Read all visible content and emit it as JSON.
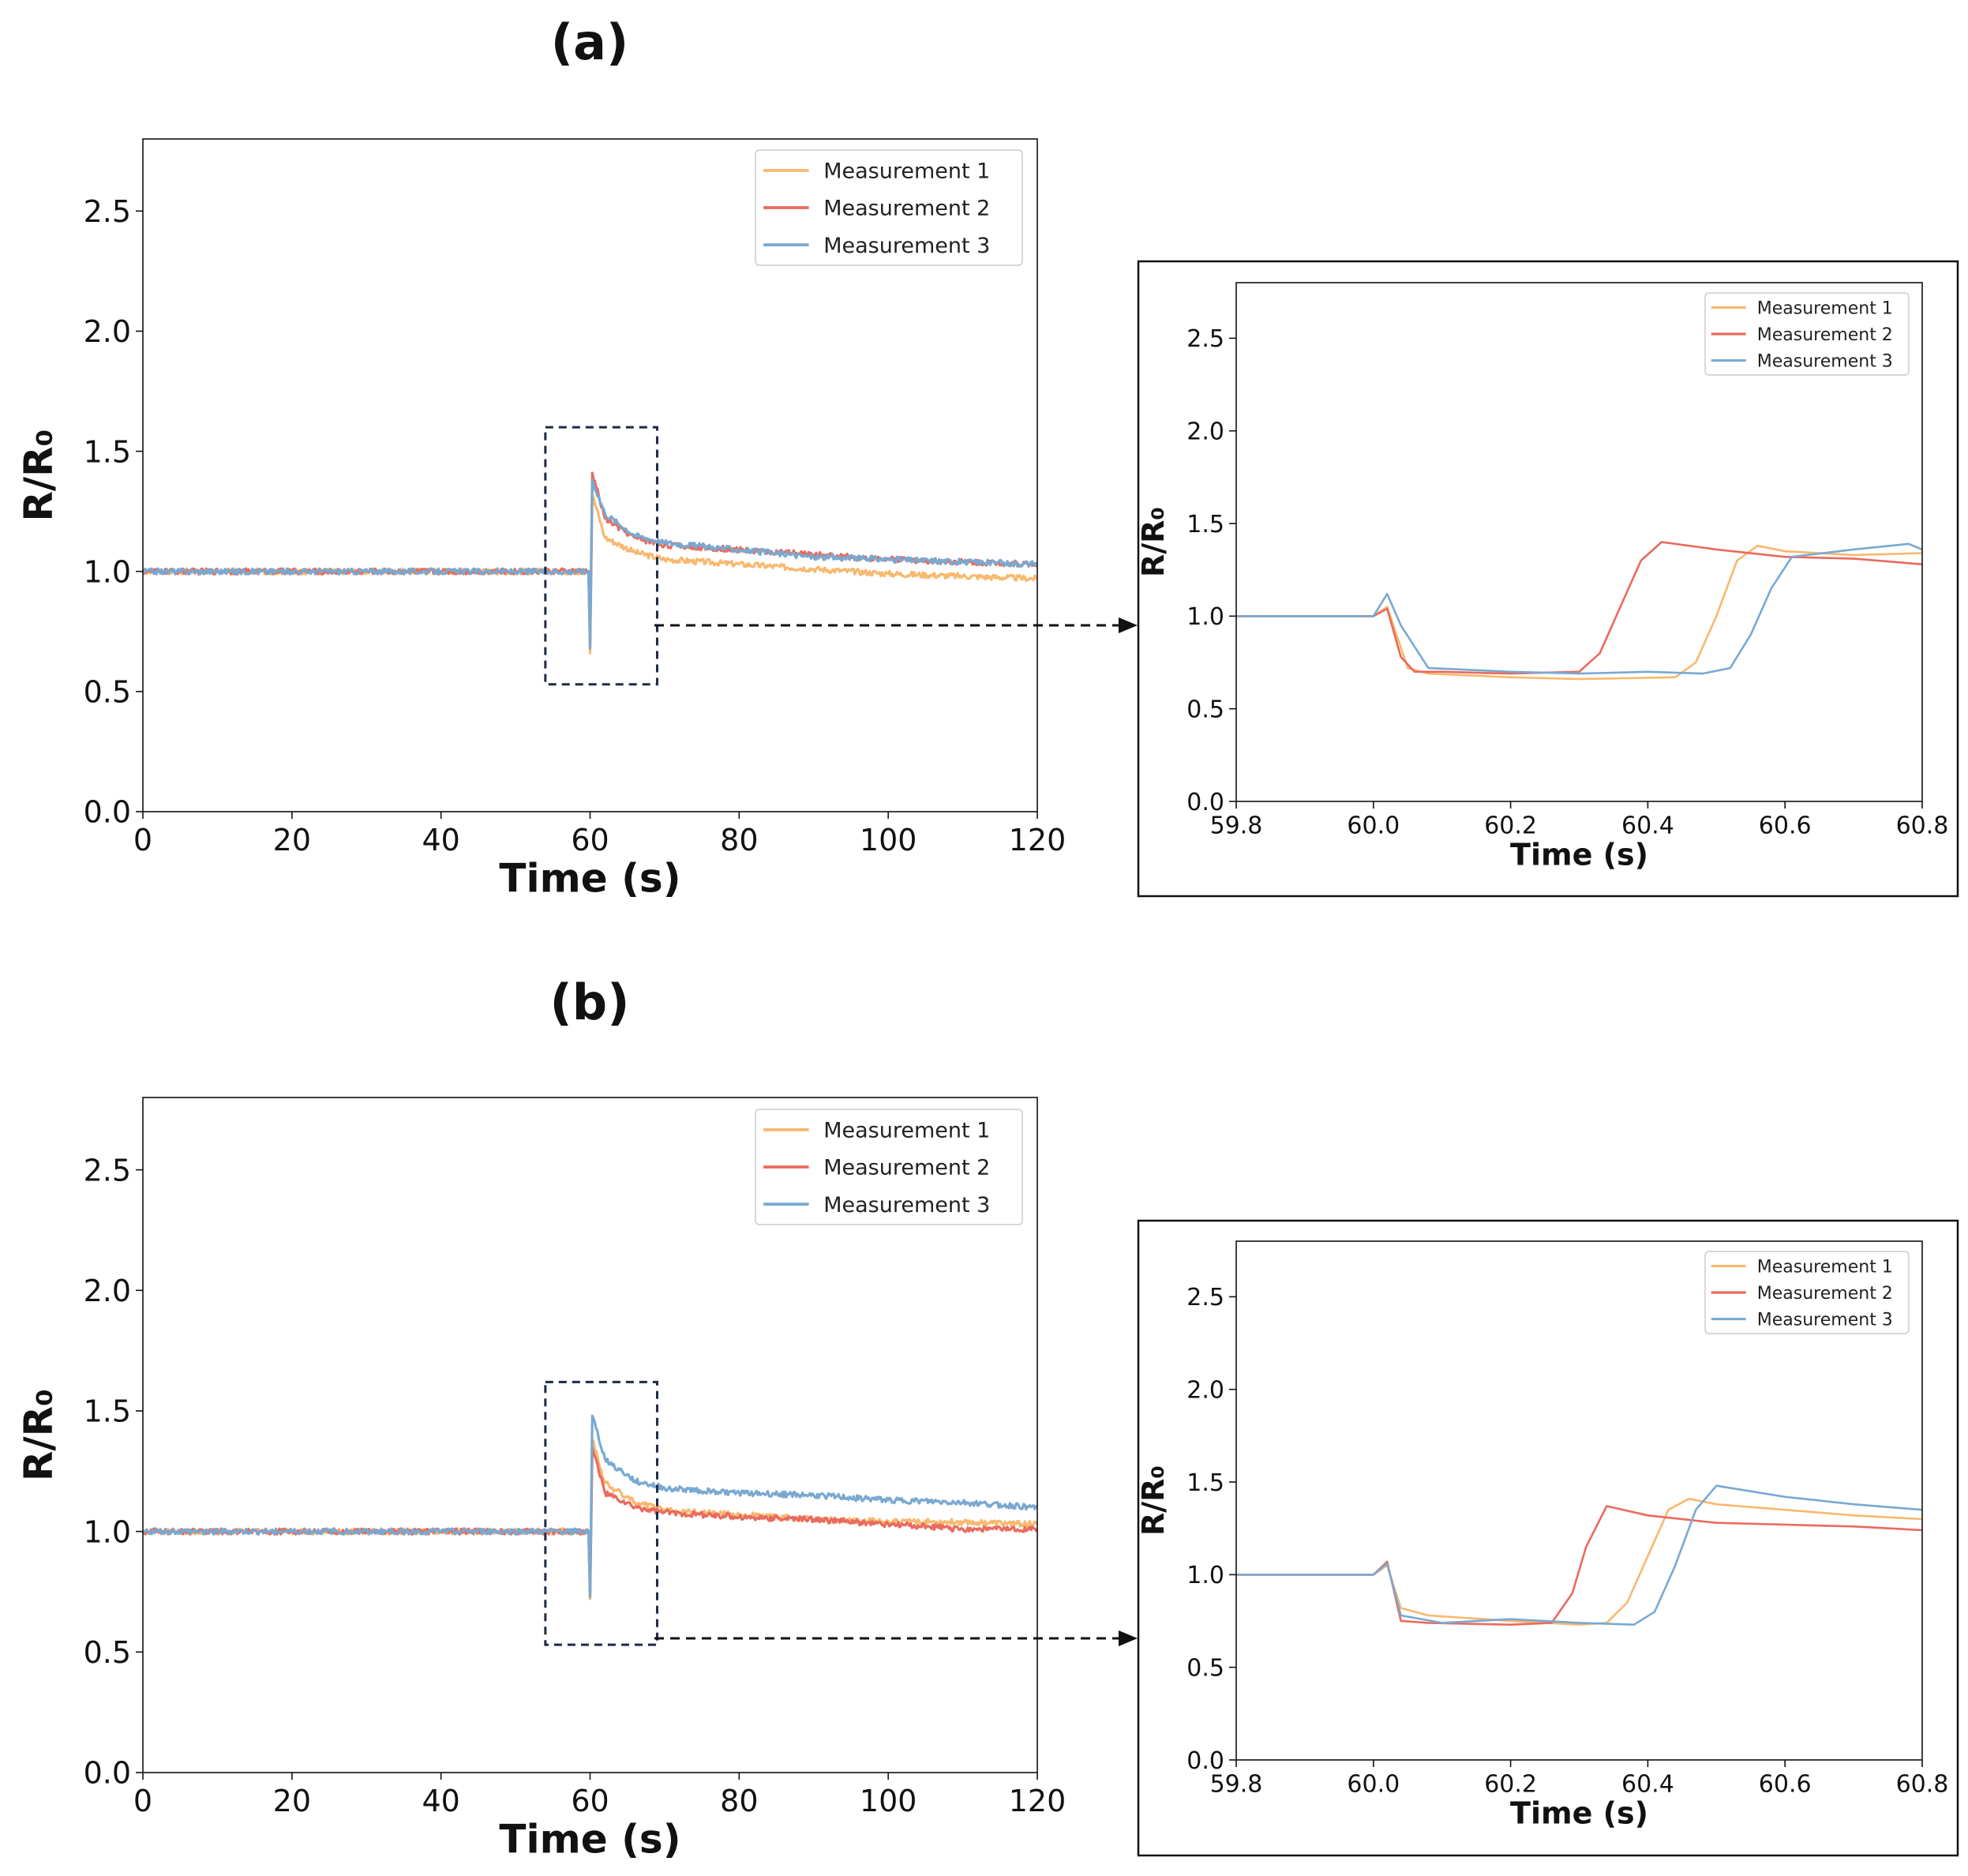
{
  "panels": [
    {
      "label": "(a)"
    },
    {
      "label": "(b)"
    }
  ],
  "colors": {
    "Measurement 1": "#f8b86e",
    "Measurement 2": "#ea6a5d",
    "Measurement 3": "#79a9d1",
    "axis": "#111111",
    "annotation": "#1f2a44"
  },
  "chart_data": [
    {
      "id": "a-main",
      "panel": "(a)",
      "type": "line",
      "xlabel": "Time (s)",
      "ylabel": "R/R₀",
      "xlim": [
        0,
        120
      ],
      "ylim": [
        0,
        2.8
      ],
      "xticks": [
        0,
        20,
        40,
        60,
        80,
        100,
        120
      ],
      "xtick_labels": [
        "0",
        "20",
        "40",
        "60",
        "80",
        "100",
        "120"
      ],
      "yticks": [
        0.0,
        0.5,
        1.0,
        1.5,
        2.0,
        2.5
      ],
      "ytick_labels": [
        "0.0",
        "0.5",
        "1.0",
        "1.5",
        "2.0",
        "2.5"
      ],
      "legend": "top-right",
      "zoom_box": {
        "x": [
          54,
          69
        ],
        "y": [
          0.53,
          1.6
        ]
      },
      "series": [
        {
          "name": "Measurement 1",
          "x": [
            0,
            20,
            40,
            59.8,
            60,
            60.3,
            62,
            66,
            70,
            80,
            90,
            100,
            110,
            120
          ],
          "y": [
            1.0,
            1.0,
            1.0,
            1.0,
            0.66,
            1.32,
            1.14,
            1.08,
            1.05,
            1.03,
            1.01,
            0.99,
            0.98,
            0.97
          ]
        },
        {
          "name": "Measurement 2",
          "x": [
            0,
            20,
            40,
            59.8,
            60,
            60.3,
            62,
            66,
            70,
            80,
            90,
            100,
            110,
            120
          ],
          "y": [
            1.0,
            1.0,
            1.0,
            1.0,
            0.69,
            1.41,
            1.22,
            1.14,
            1.11,
            1.09,
            1.07,
            1.05,
            1.04,
            1.03
          ]
        },
        {
          "name": "Measurement 3",
          "x": [
            0,
            20,
            40,
            59.8,
            60,
            60.3,
            62,
            66,
            70,
            80,
            90,
            100,
            110,
            120
          ],
          "y": [
            1.0,
            1.0,
            1.0,
            1.0,
            0.68,
            1.38,
            1.24,
            1.15,
            1.12,
            1.09,
            1.06,
            1.05,
            1.04,
            1.03
          ]
        }
      ]
    },
    {
      "id": "a-zoom",
      "panel": "(a)",
      "type": "line",
      "xlabel": "Time (s)",
      "ylabel": "R/R₀",
      "xlim": [
        59.8,
        60.8
      ],
      "ylim": [
        0,
        2.8
      ],
      "xticks": [
        59.8,
        60.0,
        60.2,
        60.4,
        60.6,
        60.8
      ],
      "xtick_labels": [
        "59.8",
        "60.0",
        "60.2",
        "60.4",
        "60.6",
        "60.8"
      ],
      "yticks": [
        0.0,
        0.5,
        1.0,
        1.5,
        2.0,
        2.5
      ],
      "ytick_labels": [
        "0.0",
        "0.5",
        "1.0",
        "1.5",
        "2.0",
        "2.5"
      ],
      "legend": "top-right",
      "series": [
        {
          "name": "Measurement 1",
          "x": [
            59.8,
            60.0,
            60.02,
            60.05,
            60.08,
            60.2,
            60.3,
            60.44,
            60.47,
            60.5,
            60.53,
            60.56,
            60.6,
            60.7,
            60.8
          ],
          "y": [
            1.0,
            1.0,
            1.05,
            0.72,
            0.69,
            0.67,
            0.66,
            0.67,
            0.75,
            1.0,
            1.3,
            1.38,
            1.35,
            1.33,
            1.34
          ]
        },
        {
          "name": "Measurement 2",
          "x": [
            59.8,
            60.0,
            60.02,
            60.04,
            60.06,
            60.1,
            60.2,
            60.3,
            60.33,
            60.36,
            60.39,
            60.42,
            60.5,
            60.6,
            60.7,
            60.8
          ],
          "y": [
            1.0,
            1.0,
            1.04,
            0.78,
            0.7,
            0.7,
            0.69,
            0.7,
            0.8,
            1.05,
            1.3,
            1.4,
            1.36,
            1.32,
            1.31,
            1.28
          ]
        },
        {
          "name": "Measurement 3",
          "x": [
            59.8,
            60.0,
            60.02,
            60.04,
            60.08,
            60.2,
            60.3,
            60.4,
            60.48,
            60.52,
            60.55,
            60.58,
            60.61,
            60.7,
            60.78,
            60.8
          ],
          "y": [
            1.0,
            1.0,
            1.12,
            0.95,
            0.72,
            0.7,
            0.69,
            0.7,
            0.69,
            0.72,
            0.9,
            1.15,
            1.32,
            1.36,
            1.39,
            1.36
          ]
        }
      ]
    },
    {
      "id": "b-main",
      "panel": "(b)",
      "type": "line",
      "xlabel": "Time (s)",
      "ylabel": "R/R₀",
      "xlim": [
        0,
        120
      ],
      "ylim": [
        0,
        2.8
      ],
      "xticks": [
        0,
        20,
        40,
        60,
        80,
        100,
        120
      ],
      "xtick_labels": [
        "0",
        "20",
        "40",
        "60",
        "80",
        "100",
        "120"
      ],
      "yticks": [
        0.0,
        0.5,
        1.0,
        1.5,
        2.0,
        2.5
      ],
      "ytick_labels": [
        "0.0",
        "0.5",
        "1.0",
        "1.5",
        "2.0",
        "2.5"
      ],
      "legend": "top-right",
      "zoom_box": {
        "x": [
          54,
          69
        ],
        "y": [
          0.53,
          1.62
        ]
      },
      "series": [
        {
          "name": "Measurement 1",
          "x": [
            0,
            20,
            40,
            59.8,
            60,
            60.3,
            62,
            66,
            70,
            80,
            90,
            100,
            110,
            120
          ],
          "y": [
            1.0,
            1.0,
            1.0,
            1.0,
            0.72,
            1.38,
            1.2,
            1.12,
            1.09,
            1.07,
            1.05,
            1.04,
            1.04,
            1.03
          ]
        },
        {
          "name": "Measurement 2",
          "x": [
            0,
            20,
            40,
            59.8,
            60,
            60.3,
            62,
            66,
            70,
            80,
            90,
            100,
            110,
            120
          ],
          "y": [
            1.0,
            1.0,
            1.0,
            1.0,
            0.73,
            1.35,
            1.16,
            1.1,
            1.08,
            1.06,
            1.05,
            1.03,
            1.01,
            1.01
          ]
        },
        {
          "name": "Measurement 3",
          "x": [
            0,
            20,
            40,
            59.8,
            60,
            60.3,
            62,
            66,
            70,
            80,
            90,
            100,
            110,
            120
          ],
          "y": [
            1.0,
            1.0,
            1.0,
            1.0,
            0.73,
            1.48,
            1.3,
            1.21,
            1.18,
            1.16,
            1.15,
            1.13,
            1.12,
            1.1
          ]
        }
      ]
    },
    {
      "id": "b-zoom",
      "panel": "(b)",
      "type": "line",
      "xlabel": "Time (s)",
      "ylabel": "R/R₀",
      "xlim": [
        59.8,
        60.8
      ],
      "ylim": [
        0,
        2.8
      ],
      "xticks": [
        59.8,
        60.0,
        60.2,
        60.4,
        60.6,
        60.8
      ],
      "xtick_labels": [
        "59.8",
        "60.0",
        "60.2",
        "60.4",
        "60.6",
        "60.8"
      ],
      "yticks": [
        0.0,
        0.5,
        1.0,
        1.5,
        2.0,
        2.5
      ],
      "ytick_labels": [
        "0.0",
        "0.5",
        "1.0",
        "1.5",
        "2.0",
        "2.5"
      ],
      "legend": "top-right",
      "series": [
        {
          "name": "Measurement 1",
          "x": [
            59.8,
            60.0,
            60.02,
            60.04,
            60.08,
            60.2,
            60.3,
            60.34,
            60.37,
            60.4,
            60.43,
            60.46,
            60.5,
            60.6,
            60.7,
            60.8
          ],
          "y": [
            1.0,
            1.0,
            1.05,
            0.82,
            0.78,
            0.75,
            0.73,
            0.74,
            0.85,
            1.1,
            1.35,
            1.41,
            1.38,
            1.35,
            1.32,
            1.3
          ]
        },
        {
          "name": "Measurement 2",
          "x": [
            59.8,
            60.0,
            60.02,
            60.04,
            60.08,
            60.2,
            60.26,
            60.29,
            60.31,
            60.34,
            60.4,
            60.5,
            60.6,
            60.7,
            60.8
          ],
          "y": [
            1.0,
            1.0,
            1.07,
            0.75,
            0.74,
            0.73,
            0.74,
            0.9,
            1.15,
            1.37,
            1.32,
            1.28,
            1.27,
            1.26,
            1.24
          ]
        },
        {
          "name": "Measurement 3",
          "x": [
            59.8,
            60.0,
            60.02,
            60.04,
            60.1,
            60.2,
            60.3,
            60.38,
            60.41,
            60.44,
            60.47,
            60.5,
            60.6,
            60.7,
            60.8
          ],
          "y": [
            1.0,
            1.0,
            1.06,
            0.78,
            0.74,
            0.76,
            0.74,
            0.73,
            0.8,
            1.05,
            1.35,
            1.48,
            1.42,
            1.38,
            1.35
          ]
        }
      ]
    }
  ]
}
